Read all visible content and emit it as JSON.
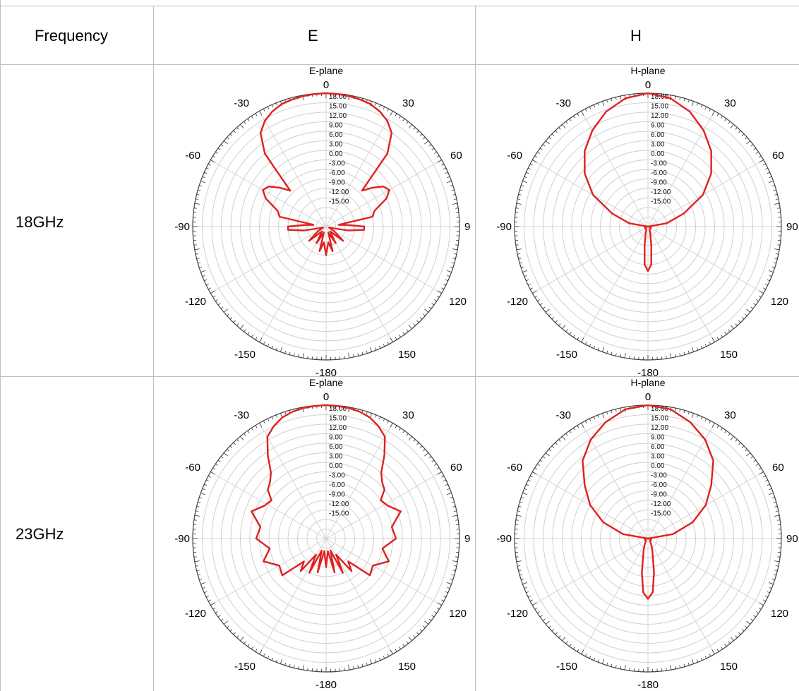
{
  "table": {
    "headers": [
      "Frequency",
      "E",
      "H"
    ],
    "rows": [
      {
        "frequency": "18GHz"
      },
      {
        "frequency": "23GHz"
      }
    ]
  },
  "chart_data": [
    {
      "type": "polar-line",
      "title": "E-plane",
      "frequency": "18GHz",
      "angle_labels": {
        "0": "0",
        "30": "30",
        "60": "60",
        "90": "9",
        "120": "120",
        "150": "150",
        "180": "-180",
        "-150": "-150",
        "-120": "-120",
        "-90": "-90",
        "-60": "-60",
        "-30": "-30"
      },
      "radial_labels": [
        "18.00",
        "15.00",
        "12.00",
        "9.00",
        "6.00",
        "3.00",
        "0.00",
        "-3.00",
        "-6.00",
        "-9.00",
        "-12.00",
        "-15.00"
      ],
      "rlim": [
        -24,
        18
      ],
      "series_color": "#e02020",
      "angles_deg": [
        -180,
        -172,
        -165,
        -160,
        -150,
        -140,
        -130,
        -120,
        -110,
        -100,
        -95,
        -90,
        -86,
        -82,
        -78,
        -72,
        -65,
        -60,
        -55,
        -50,
        -45,
        -40,
        -35,
        -30,
        -25,
        -20,
        -15,
        -10,
        -5,
        0,
        5,
        10,
        15,
        20,
        25,
        30,
        35,
        40,
        45,
        50,
        55,
        60,
        65,
        72,
        78,
        82,
        86,
        90,
        95,
        100,
        110,
        120,
        130,
        140,
        150,
        160,
        165,
        172,
        180
      ],
      "gain_db": [
        -15,
        -19,
        -16,
        -22,
        -18,
        -22,
        -17,
        -21,
        -23,
        -17,
        -12,
        -12,
        -17,
        -20,
        -9,
        -8,
        -3,
        -1,
        -2,
        -5,
        -8,
        6,
        12,
        14.5,
        16,
        17,
        17.4,
        17.7,
        17.9,
        18,
        17.9,
        17.7,
        17.4,
        17,
        16,
        14.5,
        12,
        6,
        -8,
        -5,
        -2,
        -1,
        -3,
        -8,
        -9,
        -20,
        -17,
        -12,
        -12,
        -17,
        -23,
        -21,
        -17,
        -22,
        -18,
        -22,
        -16,
        -19,
        -15
      ]
    },
    {
      "type": "polar-line",
      "title": "H-plane",
      "frequency": "18GHz",
      "angle_labels": {
        "0": "0",
        "30": "30",
        "60": "60",
        "90": "90",
        "120": "120",
        "150": "150",
        "180": "-180",
        "-150": "-150",
        "-120": "-120",
        "-90": "-90",
        "-60": "-60",
        "-30": "-30"
      },
      "radial_labels": [
        "18.00",
        "15.00",
        "12.00",
        "9.00",
        "6.00",
        "3.00",
        "0.00",
        "-3.00",
        "-6.00",
        "-9.00",
        "-12.00",
        "-15.00"
      ],
      "rlim": [
        -24,
        18
      ],
      "series_color": "#e02020",
      "angles_deg": [
        -180,
        -175,
        -170,
        -160,
        -150,
        -140,
        -130,
        -120,
        -110,
        -100,
        -90,
        -80,
        -70,
        -60,
        -50,
        -40,
        -30,
        -20,
        -10,
        0,
        10,
        20,
        30,
        40,
        50,
        60,
        70,
        80,
        90,
        100,
        110,
        120,
        130,
        140,
        150,
        160,
        170,
        175,
        180
      ],
      "gain_db": [
        -10,
        -12,
        -18,
        -22,
        -23,
        -23,
        -23,
        -23,
        -23,
        -23,
        -24,
        -18,
        -12,
        -4,
        2,
        7,
        11,
        14.5,
        17,
        18,
        17,
        14.5,
        11,
        7,
        2,
        -4,
        -12,
        -18,
        -24,
        -23,
        -23,
        -23,
        -23,
        -23,
        -23,
        -22,
        -18,
        -12,
        -10
      ]
    },
    {
      "type": "polar-line",
      "title": "E-plane",
      "frequency": "23GHz",
      "angle_labels": {
        "0": "0",
        "30": "30",
        "60": "60",
        "90": "9",
        "120": "120",
        "150": "150",
        "180": "-180",
        "-150": "-150",
        "-120": "-120",
        "-90": "-90",
        "-60": "-60",
        "-30": "-30"
      },
      "radial_labels": [
        "18.00",
        "15.00",
        "12.00",
        "9.00",
        "6.00",
        "3.00",
        "0.00",
        "-3.00",
        "-6.00",
        "-9.00",
        "-12.00",
        "-15.00"
      ],
      "rlim": [
        -24,
        18
      ],
      "series_color": "#e02020",
      "angles_deg": [
        -180,
        -172,
        -166,
        -160,
        -154,
        -148,
        -142,
        -136,
        -130,
        -120,
        -110,
        -100,
        -90,
        -80,
        -70,
        -62,
        -55,
        -50,
        -45,
        -40,
        -35,
        -30,
        -25,
        -20,
        -15,
        -10,
        -5,
        0,
        5,
        10,
        15,
        20,
        25,
        30,
        35,
        40,
        45,
        50,
        55,
        62,
        70,
        80,
        90,
        100,
        110,
        120,
        130,
        136,
        142,
        148,
        154,
        160,
        166,
        172,
        180
      ],
      "gain_db": [
        -15,
        -20,
        -13,
        -20,
        -12,
        -18,
        -11,
        -14,
        -6,
        -7,
        -3,
        -6,
        -2,
        -3,
        1,
        -2,
        -3,
        0,
        1,
        3,
        8,
        13,
        15,
        16.5,
        17.3,
        17.7,
        17.9,
        18,
        17.9,
        17.7,
        17.3,
        16.5,
        15,
        13,
        8,
        3,
        1,
        0,
        -3,
        -2,
        1,
        -3,
        -2,
        -6,
        -3,
        -7,
        -6,
        -14,
        -11,
        -18,
        -12,
        -20,
        -13,
        -20,
        -15
      ]
    },
    {
      "type": "polar-line",
      "title": "H-plane",
      "frequency": "23GHz",
      "angle_labels": {
        "0": "0",
        "30": "30",
        "60": "60",
        "90": "90",
        "120": "120",
        "150": "150",
        "180": "-180",
        "-150": "-150",
        "-120": "-120",
        "-90": "-90",
        "-60": "-60",
        "-30": "-30"
      },
      "radial_labels": [
        "18.00",
        "15.00",
        "12.00",
        "9.00",
        "6.00",
        "3.00",
        "0.00",
        "-3.00",
        "-6.00",
        "-9.00",
        "-12.00",
        "-15.00"
      ],
      "rlim": [
        -24,
        18
      ],
      "series_color": "#e02020",
      "angles_deg": [
        -180,
        -175,
        -170,
        -160,
        -150,
        -140,
        -130,
        -120,
        -110,
        -100,
        -90,
        -80,
        -70,
        -60,
        -50,
        -40,
        -30,
        -20,
        -10,
        0,
        10,
        20,
        30,
        40,
        50,
        60,
        70,
        80,
        90,
        100,
        110,
        120,
        130,
        140,
        150,
        160,
        170,
        175,
        180
      ],
      "gain_db": [
        -5,
        -7,
        -13,
        -20,
        -22,
        -23,
        -23,
        -23,
        -23,
        -23,
        -24,
        -16,
        -9,
        -3,
        2,
        8,
        12,
        15,
        17.3,
        18,
        17.3,
        15,
        12,
        8,
        2,
        -3,
        -9,
        -16,
        -24,
        -23,
        -23,
        -23,
        -23,
        -23,
        -22,
        -20,
        -13,
        -7,
        -5
      ]
    }
  ]
}
